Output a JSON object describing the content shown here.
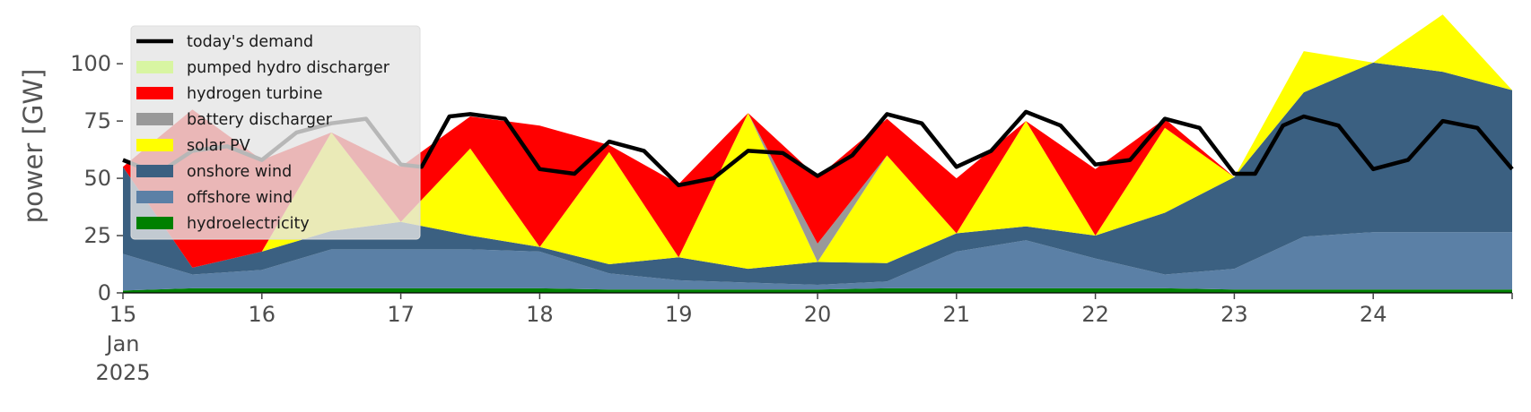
{
  "chart_data": {
    "type": "area",
    "ylabel": "power [GW]",
    "xlabel": "",
    "ylim": [
      0,
      120
    ],
    "xlim": [
      15,
      25
    ],
    "grid": false,
    "legend_position": "top-left",
    "yticks": [
      0,
      25,
      50,
      75,
      100
    ],
    "xticks": [
      {
        "x": 15,
        "label": "15",
        "sub1": "Jan",
        "sub2": "2025"
      },
      {
        "x": 16,
        "label": "16"
      },
      {
        "x": 17,
        "label": "17"
      },
      {
        "x": 18,
        "label": "18"
      },
      {
        "x": 19,
        "label": "19"
      },
      {
        "x": 20,
        "label": "20"
      },
      {
        "x": 21,
        "label": "21"
      },
      {
        "x": 22,
        "label": "22"
      },
      {
        "x": 23,
        "label": "23"
      },
      {
        "x": 24,
        "label": "24"
      }
    ],
    "x": [
      15.0,
      15.5,
      16.0,
      16.5,
      17.0,
      17.5,
      18.0,
      18.5,
      19.0,
      19.5,
      20.0,
      20.5,
      21.0,
      21.5,
      22.0,
      22.5,
      23.0,
      23.5,
      24.0,
      24.5,
      25.0
    ],
    "series": [
      {
        "name": "hydroelectricity",
        "color": "#008000",
        "values": [
          1,
          2,
          2,
          2,
          2,
          2,
          2,
          1.5,
          1.5,
          1.5,
          1.5,
          2,
          2,
          2,
          2,
          2,
          1.5,
          1.5,
          1.5,
          1.5,
          1.5
        ]
      },
      {
        "name": "offshore wind",
        "color": "#5b80a6",
        "values": [
          16,
          6,
          8,
          17,
          17,
          17,
          16,
          7,
          4,
          3,
          2,
          3,
          16,
          21,
          13,
          6,
          9,
          23,
          25,
          25,
          25
        ]
      },
      {
        "name": "onshore wind",
        "color": "#3b6081",
        "values": [
          38,
          3,
          8,
          8,
          12,
          6,
          2,
          4,
          10,
          6,
          10,
          8,
          8,
          6,
          10,
          27,
          40,
          63,
          74,
          70,
          62
        ]
      },
      {
        "name": "solar PV",
        "color": "#ffff00",
        "values": [
          0,
          0,
          0,
          43,
          0,
          38,
          0,
          49,
          0,
          68,
          0,
          47,
          0,
          46,
          0,
          37,
          0,
          18,
          0,
          25,
          0
        ]
      },
      {
        "name": "battery discharger",
        "color": "#999999",
        "values": [
          0,
          0,
          0,
          0,
          0,
          0,
          0,
          0,
          0,
          0,
          8,
          0,
          0,
          0,
          0,
          0,
          0,
          0,
          0,
          0,
          0
        ]
      },
      {
        "name": "hydrogen turbine",
        "color": "#ff0000",
        "values": [
          0,
          69,
          40,
          0,
          24,
          14,
          53,
          3,
          32,
          0,
          29,
          16,
          24,
          0,
          29,
          4,
          0,
          0,
          0,
          0,
          0
        ]
      },
      {
        "name": "pumped hydro discharger",
        "color": "#d8f5a2",
        "values": [
          0,
          0,
          0,
          0,
          0,
          0,
          0,
          0,
          0,
          0,
          0,
          0,
          0,
          0,
          0,
          0,
          0,
          0,
          0,
          0,
          0
        ]
      }
    ],
    "demand": {
      "name": "today's demand",
      "color": "#000000",
      "x": [
        15.0,
        15.25,
        15.5,
        15.75,
        16.0,
        16.25,
        16.5,
        16.75,
        17.0,
        17.15,
        17.35,
        17.5,
        17.75,
        18.0,
        18.25,
        18.5,
        18.75,
        19.0,
        19.25,
        19.5,
        19.75,
        20.0,
        20.25,
        20.5,
        20.75,
        21.0,
        21.25,
        21.5,
        21.75,
        22.0,
        22.25,
        22.5,
        22.75,
        23.0,
        23.15,
        23.35,
        23.5,
        23.75,
        24.0,
        24.25,
        24.5,
        24.75,
        25.0
      ],
      "values": [
        58,
        52,
        62,
        64,
        58,
        70,
        74,
        76,
        56,
        55,
        77,
        78,
        76,
        54,
        52,
        66,
        62,
        47,
        50,
        62,
        61,
        51,
        60,
        78,
        74,
        55,
        62,
        79,
        73,
        56,
        58,
        76,
        72,
        52,
        52,
        73,
        77,
        73,
        54,
        58,
        75,
        72,
        54
      ]
    },
    "legend": [
      "today's demand",
      "pumped hydro discharger",
      "hydrogen turbine",
      "battery discharger",
      "solar PV",
      "onshore wind",
      "offshore wind",
      "hydroelectricity"
    ]
  }
}
